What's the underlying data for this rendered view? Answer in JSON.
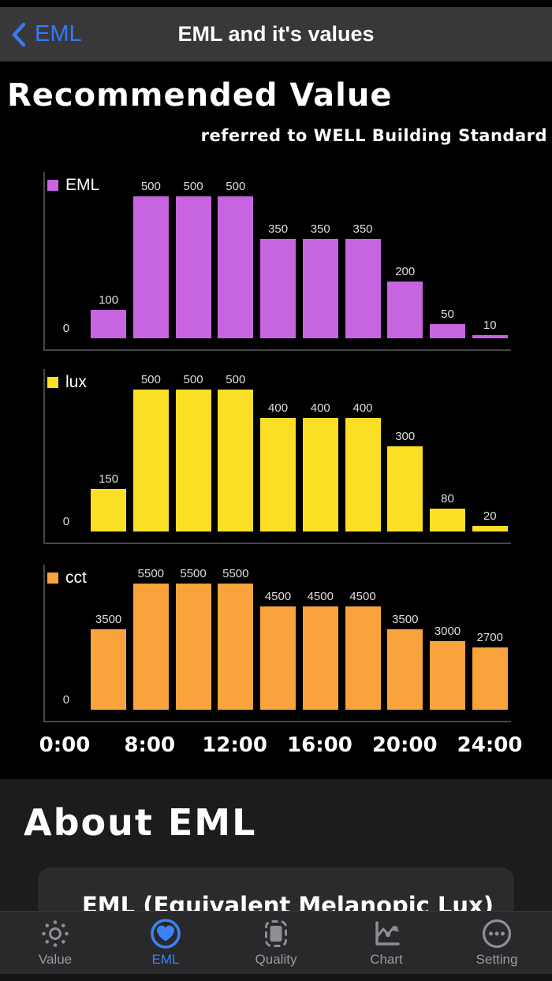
{
  "nav": {
    "back_label": "EML",
    "title": "EML and it's values"
  },
  "section": {
    "title": "Recommended Value",
    "subtitle": "referred to WELL Building Standard"
  },
  "chart_data": {
    "type": "bar",
    "title": "Recommended Value",
    "subtitle": "referred to WELL Building Standard",
    "x_tick_labels": [
      "0:00",
      "8:00",
      "12:00",
      "16:00",
      "20:00",
      "24:00"
    ],
    "slots_per_chart": 11,
    "legend_position": "top-left",
    "grid": false,
    "charts": [
      {
        "name": "EML",
        "color": "#c765e0",
        "ylim": [
          0,
          500
        ],
        "values": [
          0,
          100,
          500,
          500,
          500,
          350,
          350,
          350,
          200,
          50,
          10
        ]
      },
      {
        "name": "lux",
        "color": "#fbdf25",
        "ylim": [
          0,
          500
        ],
        "values": [
          0,
          150,
          500,
          500,
          500,
          400,
          400,
          400,
          300,
          80,
          20
        ]
      },
      {
        "name": "cct",
        "color": "#f9a33c",
        "ylim": [
          0,
          5500
        ],
        "values": [
          0,
          3500,
          5500,
          5500,
          5500,
          4500,
          4500,
          4500,
          3500,
          3000,
          2700
        ]
      }
    ]
  },
  "about": {
    "title": "About EML",
    "text": "EML (Equivalent Melanopic Lux) is"
  },
  "tabbar": {
    "active_index": 1,
    "active_color": "#3b82f7",
    "inactive_color": "#98989e",
    "items": [
      {
        "label": "Value",
        "icon": "sun-icon"
      },
      {
        "label": "EML",
        "icon": "heart-circle-icon"
      },
      {
        "label": "Quality",
        "icon": "chip-icon"
      },
      {
        "label": "Chart",
        "icon": "line-chart-icon"
      },
      {
        "label": "Setting",
        "icon": "ellipsis-circle-icon"
      }
    ]
  }
}
